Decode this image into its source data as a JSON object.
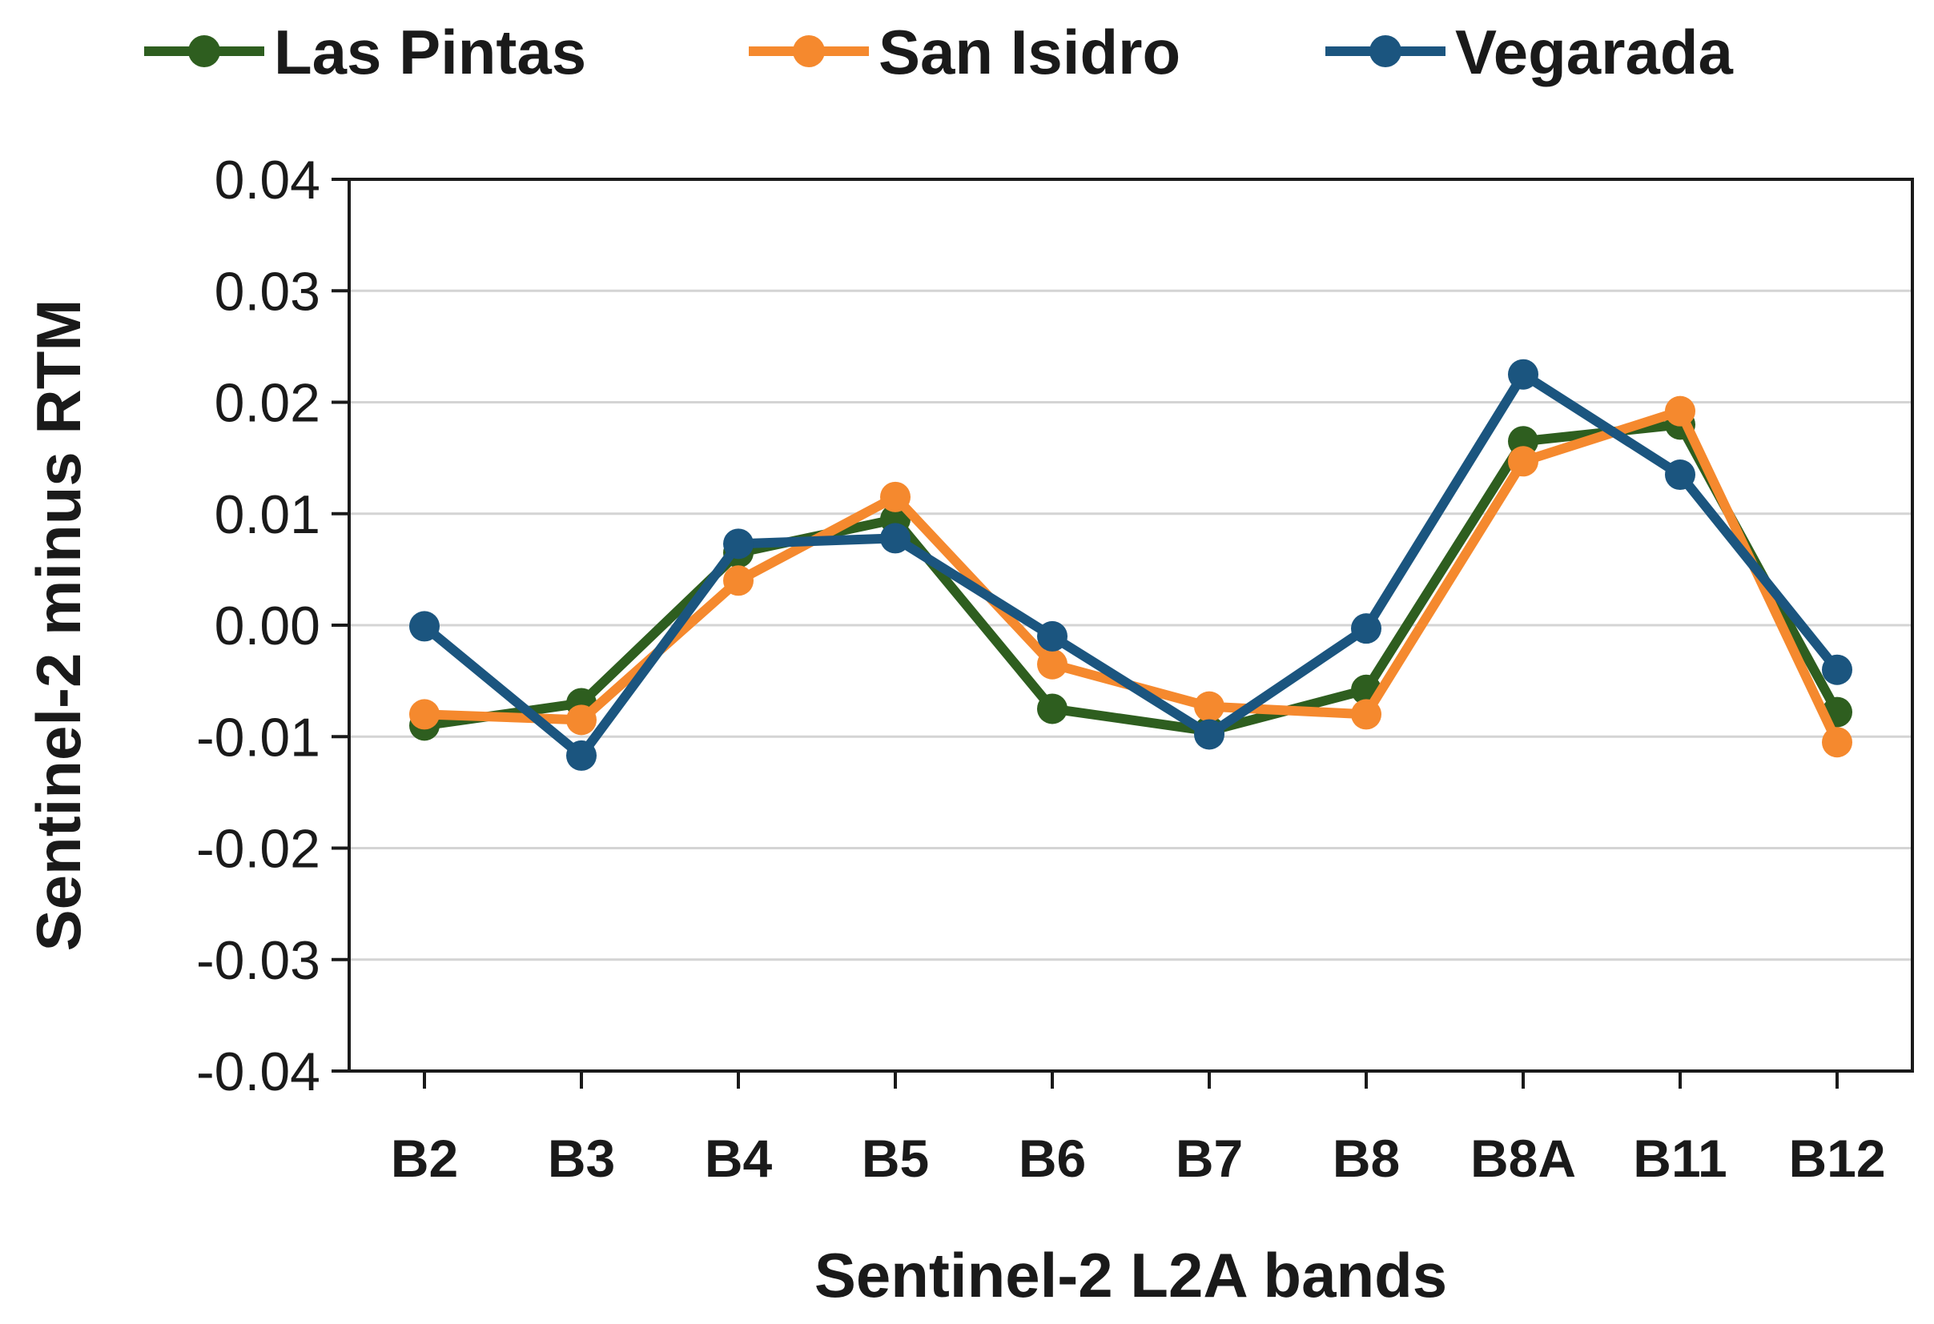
{
  "chart_data": {
    "type": "line",
    "title": "",
    "xlabel": "Sentinel-2 L2A bands",
    "ylabel": "Sentinel-2 minus RTM",
    "categories": [
      "B2",
      "B3",
      "B4",
      "B5",
      "B6",
      "B7",
      "B8",
      "B8A",
      "B11",
      "B12"
    ],
    "ylim": [
      -0.04,
      0.04
    ],
    "yticks": [
      0.04,
      0.03,
      0.02,
      0.01,
      0.0,
      -0.01,
      -0.02,
      -0.03,
      -0.04
    ],
    "ytick_labels": [
      "0.04",
      "0.03",
      "0.02",
      "0.01",
      "0.00",
      "-0.01",
      "-0.02",
      "-0.03",
      "-0.04"
    ],
    "grid": true,
    "legend_position": "top",
    "series": [
      {
        "name": "Las Pintas",
        "color": "#2e5e1f",
        "values": [
          -0.009,
          -0.007,
          0.0065,
          0.0095,
          -0.0075,
          -0.0095,
          -0.0058,
          0.0165,
          0.018,
          -0.0078
        ]
      },
      {
        "name": "San Isidro",
        "color": "#f5892e",
        "values": [
          -0.008,
          -0.0085,
          0.004,
          0.0115,
          -0.0035,
          -0.0073,
          -0.008,
          0.0147,
          0.0192,
          -0.0105
        ]
      },
      {
        "name": "Vegarada",
        "color": "#1b557f",
        "values": [
          -0.0001,
          -0.0117,
          0.0073,
          0.0078,
          -0.001,
          -0.0098,
          -0.0003,
          0.0225,
          0.0135,
          -0.004
        ]
      }
    ]
  }
}
